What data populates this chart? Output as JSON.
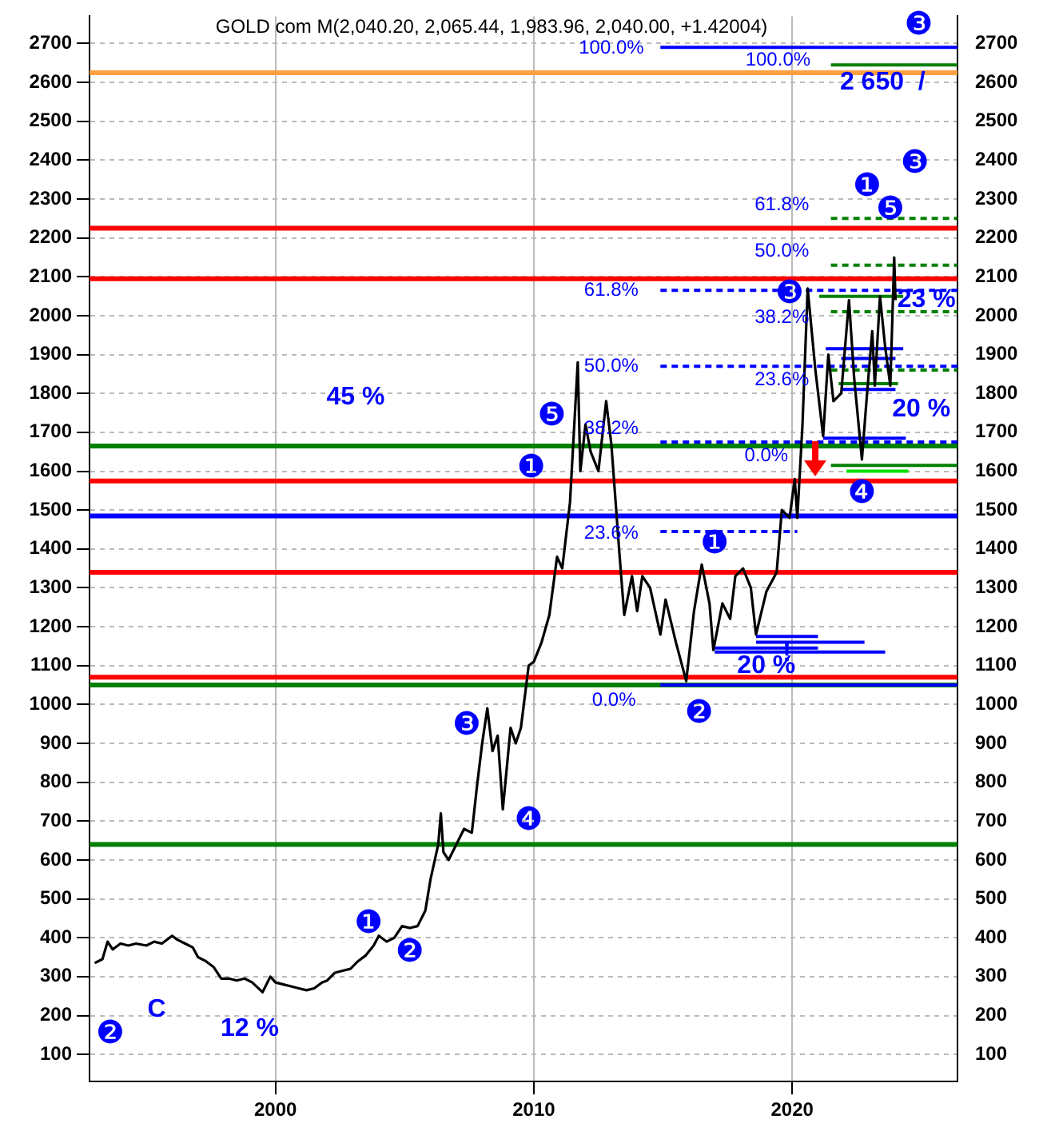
{
  "chart_data": {
    "type": "line",
    "title": "GOLD com M(2,040.20, 2,065.44, 1,983.96, 2,040.00, +1.42004)",
    "xlim": [
      1992.8,
      2026.4
    ],
    "xticks": [
      2000,
      2010,
      2020
    ],
    "ylim": [
      30,
      2770
    ],
    "yticks": [
      100,
      200,
      300,
      400,
      500,
      600,
      700,
      800,
      900,
      1000,
      1100,
      1200,
      1300,
      1400,
      1500,
      1600,
      1700,
      1800,
      1900,
      2000,
      2100,
      2200,
      2300,
      2400,
      2500,
      2600,
      2700
    ],
    "y2lim": [
      30,
      2770
    ],
    "y2ticks": [
      100,
      200,
      300,
      400,
      500,
      600,
      700,
      800,
      900,
      1000,
      1100,
      1200,
      1300,
      1400,
      1500,
      1600,
      1700,
      1800,
      1900,
      2000,
      2100,
      2200,
      2300,
      2400,
      2500,
      2600,
      2700
    ],
    "grid": true,
    "legend": false,
    "series": [
      {
        "color": "#000000",
        "x": [
          1993.0,
          1993.3,
          1993.5,
          1993.7,
          1994.0,
          1994.3,
          1994.6,
          1995.0,
          1995.3,
          1995.6,
          1996.0,
          1996.2,
          1996.5,
          1996.8,
          1997.0,
          1997.3,
          1997.6,
          1997.9,
          1998.2,
          1998.5,
          1998.8,
          1999.1,
          1999.5,
          1999.8,
          2000.0,
          2000.3,
          2000.6,
          2000.9,
          2001.2,
          2001.5,
          2001.8,
          2002.0,
          2002.3,
          2002.6,
          2002.9,
          2003.2,
          2003.5,
          2003.8,
          2004.0,
          2004.3,
          2004.6,
          2004.9,
          2005.2,
          2005.5,
          2005.8,
          2006.0,
          2006.3,
          2006.4,
          2006.5,
          2006.7,
          2007.0,
          2007.3,
          2007.6,
          2007.8,
          2008.0,
          2008.2,
          2008.4,
          2008.6,
          2008.8,
          2008.9,
          2009.1,
          2009.3,
          2009.5,
          2009.8,
          2010.0,
          2010.3,
          2010.6,
          2010.9,
          2011.1,
          2011.4,
          2011.7,
          2011.8,
          2012.0,
          2012.2,
          2012.5,
          2012.8,
          2013.0,
          2013.3,
          2013.5,
          2013.8,
          2014.0,
          2014.2,
          2014.5,
          2014.9,
          2015.1,
          2015.5,
          2015.9,
          2016.2,
          2016.5,
          2016.8,
          2016.95,
          2017.3,
          2017.6,
          2017.8,
          2018.1,
          2018.4,
          2018.6,
          2019.0,
          2019.4,
          2019.6,
          2019.9,
          2020.1,
          2020.2,
          2020.4,
          2020.6,
          2020.9,
          2021.2,
          2021.4,
          2021.6,
          2021.9,
          2022.2,
          2022.4,
          2022.7,
          2022.9,
          2023.1,
          2023.2,
          2023.4,
          2023.6,
          2023.8,
          2023.95,
          2024.0
        ],
        "values": [
          335,
          345,
          390,
          370,
          385,
          380,
          385,
          380,
          390,
          385,
          405,
          395,
          385,
          375,
          350,
          340,
          325,
          295,
          295,
          290,
          295,
          285,
          260,
          300,
          285,
          280,
          275,
          270,
          265,
          270,
          285,
          290,
          310,
          315,
          320,
          340,
          355,
          380,
          405,
          390,
          400,
          430,
          425,
          430,
          470,
          550,
          640,
          720,
          620,
          600,
          640,
          680,
          670,
          790,
          900,
          990,
          880,
          920,
          730,
          800,
          940,
          900,
          940,
          1100,
          1110,
          1160,
          1230,
          1380,
          1350,
          1520,
          1880,
          1600,
          1720,
          1650,
          1600,
          1780,
          1670,
          1400,
          1230,
          1330,
          1240,
          1330,
          1300,
          1180,
          1270,
          1160,
          1060,
          1240,
          1360,
          1260,
          1140,
          1260,
          1220,
          1330,
          1350,
          1300,
          1180,
          1290,
          1340,
          1500,
          1480,
          1580,
          1480,
          1720,
          2070,
          1860,
          1690,
          1900,
          1780,
          1800,
          2040,
          1840,
          1630,
          1800,
          1960,
          1820,
          2050,
          1920,
          1820,
          2150,
          2040
        ]
      },
      {
        "color": "#0000ff",
        "line_style": "solid",
        "x": [
          2014.9,
          2026.4
        ],
        "values": [
          2690,
          2690
        ]
      },
      {
        "color": "#0000ff",
        "line_style": "dashed",
        "x": [
          2014.9,
          2026.4
        ],
        "values": [
          2065,
          2065
        ]
      },
      {
        "color": "#0000ff",
        "line_style": "dashed",
        "x": [
          2014.9,
          2026.4
        ],
        "values": [
          1870,
          1870
        ]
      },
      {
        "color": "#0000ff",
        "line_style": "dashed",
        "x": [
          2014.9,
          2026.4
        ],
        "values": [
          1675,
          1675
        ]
      },
      {
        "color": "#0000ff",
        "line_style": "dashed",
        "x": [
          2014.9,
          2020.2
        ],
        "values": [
          1445,
          1445
        ]
      },
      {
        "color": "#0000ff",
        "line_style": "solid",
        "x": [
          2014.9,
          2026.4
        ],
        "values": [
          1050,
          1050
        ]
      },
      {
        "color": "#008000",
        "line_style": "solid",
        "x": [
          2021.5,
          2026.4
        ],
        "values": [
          2645,
          2645
        ]
      },
      {
        "color": "#008000",
        "line_style": "dashed",
        "x": [
          2021.5,
          2026.4
        ],
        "values": [
          2250,
          2250
        ]
      },
      {
        "color": "#008000",
        "line_style": "dashed",
        "x": [
          2021.5,
          2026.4
        ],
        "values": [
          2130,
          2130
        ]
      },
      {
        "color": "#008000",
        "line_style": "dashed",
        "x": [
          2021.5,
          2026.4
        ],
        "values": [
          2010,
          2010
        ]
      },
      {
        "color": "#008000",
        "line_style": "dashed",
        "x": [
          2021.5,
          2026.4
        ],
        "values": [
          1860,
          1860
        ]
      },
      {
        "color": "#008000",
        "line_style": "solid",
        "x": [
          2021.5,
          2026.4
        ],
        "values": [
          1615,
          1615
        ]
      },
      {
        "color": "#0000ff",
        "line_style": "solid",
        "x": [
          2021.3,
          2024.3
        ],
        "values": [
          1915,
          1915
        ]
      },
      {
        "color": "#0000ff",
        "line_style": "solid",
        "x": [
          2021.9,
          2024.0
        ],
        "values": [
          1890,
          1890
        ]
      },
      {
        "color": "#0000ff",
        "line_style": "solid",
        "x": [
          2021.9,
          2024.0
        ],
        "values": [
          1810,
          1810
        ]
      },
      {
        "color": "#0000ff",
        "line_style": "solid",
        "x": [
          2021.2,
          2024.4
        ],
        "values": [
          1685,
          1685
        ]
      },
      {
        "color": "#008000",
        "line_style": "solid",
        "x": [
          2021.05,
          2024.3
        ],
        "values": [
          2050,
          2050
        ]
      },
      {
        "color": "#008000",
        "line_style": "solid",
        "x": [
          2021.8,
          2024.1
        ],
        "values": [
          1825,
          1825
        ]
      },
      {
        "color": "#00e000",
        "line_style": "solid",
        "x": [
          2022.1,
          2024.5
        ],
        "values": [
          1600,
          1600
        ]
      },
      {
        "color": "#0000ff",
        "line_style": "solid",
        "x": [
          2018.6,
          2021.0
        ],
        "values": [
          1175,
          1175
        ]
      },
      {
        "color": "#0000ff",
        "line_style": "solid",
        "x": [
          2018.6,
          2022.8
        ],
        "values": [
          1160,
          1160
        ]
      },
      {
        "color": "#0000ff",
        "line_style": "solid",
        "x": [
          2017.0,
          2021.0
        ],
        "values": [
          1145,
          1145
        ]
      },
      {
        "color": "#0000ff",
        "line_style": "solid",
        "x": [
          2017.0,
          2023.6
        ],
        "values": [
          1135,
          1135
        ]
      }
    ],
    "ref_lines": [
      {
        "axis": "y",
        "value": 2625,
        "color": "#ffa040"
      },
      {
        "axis": "y",
        "value": 2225,
        "color": "#ff0000"
      },
      {
        "axis": "y",
        "value": 2095,
        "color": "#ff0000"
      },
      {
        "axis": "y",
        "value": 1665,
        "color": "#008000"
      },
      {
        "axis": "y",
        "value": 1575,
        "color": "#ff0000"
      },
      {
        "axis": "y",
        "value": 1485,
        "color": "#0000ff"
      },
      {
        "axis": "y",
        "value": 1340,
        "color": "#ff0000"
      },
      {
        "axis": "y",
        "value": 1070,
        "color": "#ff0000"
      },
      {
        "axis": "y",
        "value": 1050,
        "color": "#008000"
      },
      {
        "axis": "y",
        "value": 640,
        "color": "#008000"
      }
    ],
    "annotations": [
      "100.0%",
      "100.0%",
      "61.8%",
      "50.0%",
      "61.8%",
      "38.2%",
      "50.0%",
      "23.6%",
      "38.2%",
      "0.0%",
      "23.6%",
      "0.0%",
      "2 650  /",
      "23 %",
      "20 %",
      "45 %",
      "20 %",
      "!",
      "12 %",
      "C",
      "❸",
      "❸",
      "❶",
      "❺",
      "❸",
      "❺",
      "❶",
      "❹",
      "❶",
      "❷",
      "❸",
      "❹",
      "❶",
      "❷",
      "❷"
    ]
  }
}
